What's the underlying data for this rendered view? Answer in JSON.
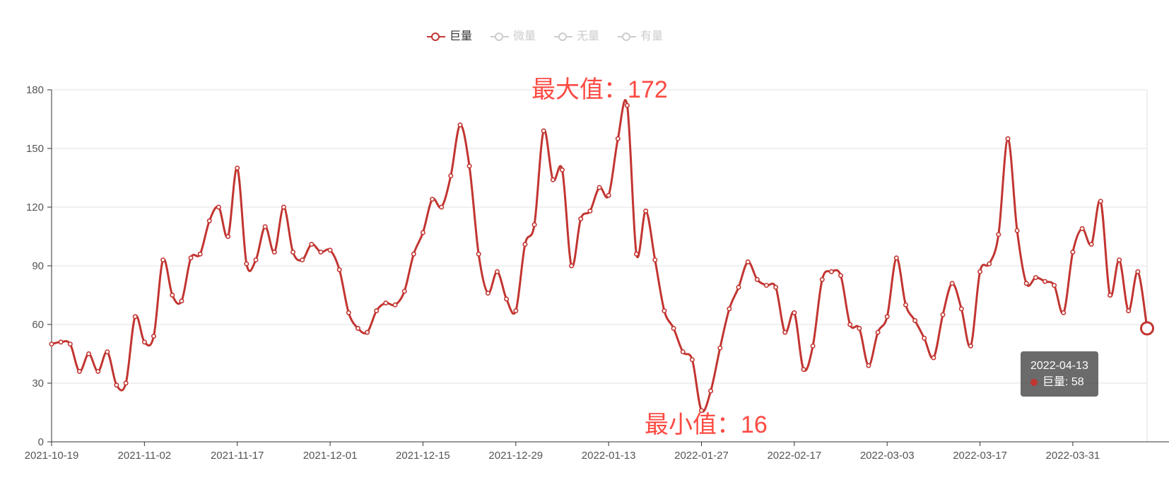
{
  "colors": {
    "series": "#c23531",
    "inactive": "#cccccc",
    "annotation": "#fc4a42",
    "axis_line": "#333333",
    "grid_line": "#e0e0e0",
    "axis_label": "#555555",
    "legend_active_text": "#333333",
    "tooltip_bg": "rgba(50,50,50,0.72)",
    "marker_fill": "#ffffff"
  },
  "legend": {
    "items": [
      {
        "label": "巨量",
        "active": true
      },
      {
        "label": "微量",
        "active": false
      },
      {
        "label": "无量",
        "active": false
      },
      {
        "label": "有量",
        "active": false
      }
    ]
  },
  "tooltip": {
    "date": "2022-04-13",
    "label": "巨量: 58"
  },
  "chart_data": {
    "type": "line",
    "smooth": true,
    "grid": true,
    "legend_position": "top",
    "ylim": [
      0,
      180
    ],
    "y_ticks": [
      0,
      30,
      60,
      90,
      120,
      150,
      180
    ],
    "x_tick_labels": [
      "2021-10-19",
      "2021-11-02",
      "2021-11-17",
      "2021-12-01",
      "2021-12-15",
      "2021-12-29",
      "2022-01-13",
      "2022-01-27",
      "2022-02-17",
      "2022-03-03",
      "2022-03-17",
      "2022-03-31"
    ],
    "x_label_interval": 10,
    "point_count": 119,
    "annotations": [
      {
        "type": "max",
        "text": "最大值：172",
        "value": 172
      },
      {
        "type": "min",
        "text": "最小值：16",
        "value": 16
      }
    ],
    "highlighted_point": {
      "index": 118,
      "date": "2022-04-13",
      "series": "巨量",
      "value": 58
    },
    "series": [
      {
        "name": "巨量",
        "state": "active",
        "values": [
          50,
          51,
          50,
          36,
          45,
          36,
          46,
          29,
          30,
          64,
          51,
          54,
          93,
          75,
          72,
          94,
          96,
          113,
          120,
          105,
          140,
          91,
          93,
          110,
          97,
          120,
          97,
          93,
          101,
          97,
          98,
          88,
          66,
          58,
          56,
          67,
          71,
          70,
          77,
          96,
          107,
          124,
          120,
          136,
          162,
          141,
          96,
          76,
          87,
          73,
          67,
          101,
          111,
          159,
          134,
          139,
          90,
          114,
          118,
          130,
          126,
          155,
          172,
          96,
          118,
          93,
          67,
          58,
          46,
          42,
          16,
          26,
          48,
          68,
          79,
          92,
          83,
          80,
          79,
          56,
          66,
          37,
          49,
          83,
          87,
          85,
          60,
          58,
          39,
          56,
          64,
          94,
          70,
          62,
          53,
          43,
          65,
          81,
          68,
          49,
          87,
          91,
          106,
          155,
          108,
          81,
          84,
          82,
          80,
          66,
          97,
          109,
          101,
          123,
          75,
          93,
          67,
          87,
          58
        ]
      },
      {
        "name": "微量",
        "state": "inactive",
        "values": []
      },
      {
        "name": "无量",
        "state": "inactive",
        "values": []
      },
      {
        "name": "有量",
        "state": "inactive",
        "values": []
      }
    ]
  }
}
